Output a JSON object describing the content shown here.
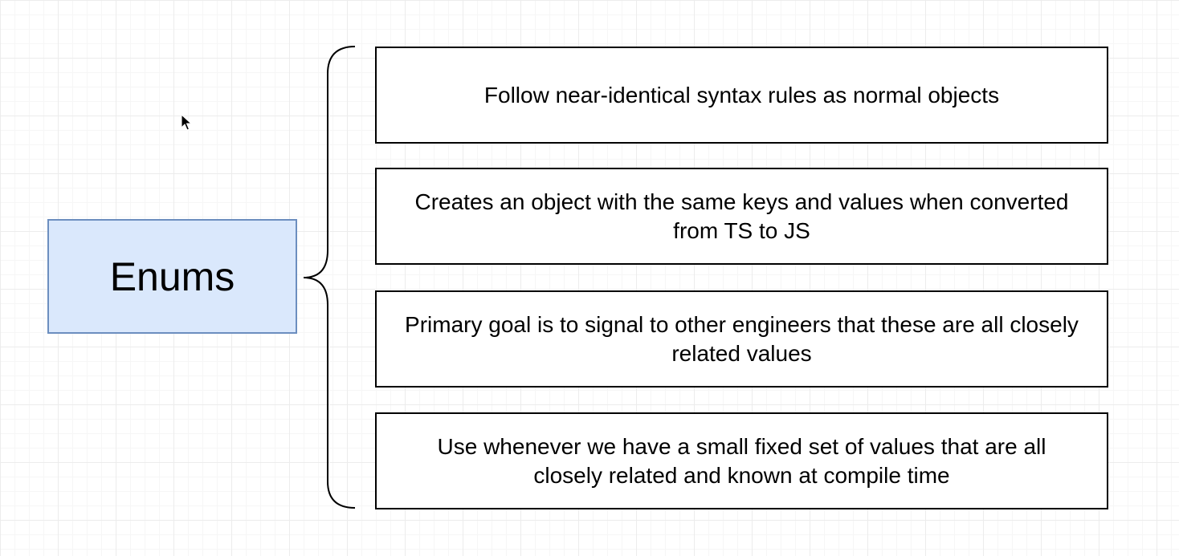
{
  "diagram": {
    "root": {
      "label": "Enums"
    },
    "items": [
      {
        "label": "Follow near-identical syntax rules as normal objects"
      },
      {
        "label": "Creates an object with the same keys and values when converted from TS to JS"
      },
      {
        "label": "Primary goal is to signal to other engineers that these are all closely related values"
      },
      {
        "label": "Use whenever we have a small fixed set of values that are all closely related and known at compile time"
      }
    ]
  },
  "colors": {
    "root_fill": "#dae8fc",
    "root_stroke": "#6c8ebf",
    "item_stroke": "#000000",
    "grid_line": "#ececec"
  },
  "icons": {
    "cursor": "mouse-pointer-icon"
  }
}
